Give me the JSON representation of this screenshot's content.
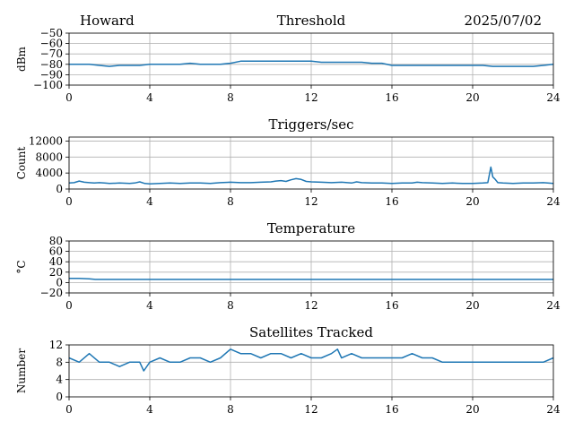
{
  "header": {
    "station": "Howard",
    "date": "2025/07/02"
  },
  "colors": {
    "series": "#1f77b4",
    "grid": "#b0b0b0",
    "axis": "#000000"
  },
  "chart_data": [
    {
      "type": "line",
      "title": "Threshold",
      "xlabel": "",
      "ylabel": "dBm",
      "xlim": [
        0,
        24
      ],
      "ylim": [
        -100,
        -50
      ],
      "xticks": [
        0,
        4,
        8,
        12,
        16,
        20,
        24
      ],
      "yticks": [
        -100,
        -90,
        -80,
        -70,
        -60,
        -50
      ],
      "ytick_labels": [
        "−100",
        "−90",
        "−80",
        "−70",
        "−60",
        "−50"
      ],
      "grid": true,
      "series": [
        {
          "x": [
            0,
            0.5,
            1,
            1.5,
            2,
            2.5,
            3,
            3.5,
            4,
            4.5,
            5,
            5.5,
            6,
            6.5,
            7,
            7.5,
            8,
            8.5,
            9,
            9.5,
            10,
            10.5,
            11,
            11.5,
            12,
            12.5,
            13,
            13.5,
            14,
            14.5,
            15,
            15.5,
            16,
            16.5,
            17,
            17.5,
            18,
            18.5,
            19,
            19.5,
            20,
            20.5,
            21,
            21.5,
            22,
            22.5,
            23,
            23.5,
            24
          ],
          "y": [
            -80,
            -80,
            -80,
            -81,
            -82,
            -81,
            -81,
            -81,
            -80,
            -80,
            -80,
            -80,
            -79,
            -80,
            -80,
            -80,
            -79,
            -77,
            -77,
            -77,
            -77,
            -77,
            -77,
            -77,
            -77,
            -78,
            -78,
            -78,
            -78,
            -78,
            -79,
            -79,
            -81,
            -81,
            -81,
            -81,
            -81,
            -81,
            -81,
            -81,
            -81,
            -81,
            -82,
            -82,
            -82,
            -82,
            -82,
            -81,
            -80
          ]
        }
      ]
    },
    {
      "type": "line",
      "title": "Triggers/sec",
      "xlabel": "",
      "ylabel": "Count",
      "xlim": [
        0,
        24
      ],
      "ylim": [
        0,
        13000
      ],
      "xticks": [
        0,
        4,
        8,
        12,
        16,
        20,
        24
      ],
      "yticks": [
        0,
        4000,
        8000,
        12000
      ],
      "grid": true,
      "series": [
        {
          "x": [
            0,
            0.25,
            0.5,
            0.75,
            1,
            1.25,
            1.5,
            1.75,
            2,
            2.5,
            3,
            3.25,
            3.5,
            3.75,
            4,
            4.5,
            5,
            5.5,
            6,
            6.5,
            7,
            7.5,
            8,
            8.5,
            9,
            9.5,
            10,
            10.25,
            10.5,
            10.75,
            11,
            11.25,
            11.5,
            11.75,
            12,
            12.5,
            13,
            13.5,
            14,
            14.25,
            14.5,
            15,
            15.5,
            16,
            16.5,
            17,
            17.25,
            17.5,
            18,
            18.5,
            19,
            19.5,
            20,
            20.5,
            20.75,
            20.9,
            21,
            21.1,
            21.25,
            21.5,
            22,
            22.5,
            23,
            23.5,
            24
          ],
          "y": [
            1500,
            1600,
            2000,
            1700,
            1600,
            1500,
            1600,
            1500,
            1400,
            1500,
            1400,
            1500,
            1800,
            1400,
            1300,
            1400,
            1500,
            1400,
            1500,
            1500,
            1400,
            1600,
            1700,
            1600,
            1600,
            1700,
            1800,
            2000,
            2100,
            1900,
            2300,
            2600,
            2400,
            1900,
            1800,
            1700,
            1600,
            1700,
            1500,
            1800,
            1600,
            1500,
            1500,
            1400,
            1500,
            1500,
            1700,
            1600,
            1500,
            1400,
            1500,
            1400,
            1400,
            1500,
            1600,
            5500,
            3000,
            2500,
            1600,
            1500,
            1400,
            1500,
            1500,
            1600,
            1400
          ]
        }
      ]
    },
    {
      "type": "line",
      "title": "Temperature",
      "xlabel": "",
      "ylabel": "°C",
      "xlim": [
        0,
        24
      ],
      "ylim": [
        -20,
        80
      ],
      "xticks": [
        0,
        4,
        8,
        12,
        16,
        20,
        24
      ],
      "yticks": [
        -20,
        0,
        20,
        40,
        60,
        80
      ],
      "ytick_labels": [
        "−20",
        "0",
        "20",
        "40",
        "60",
        "80"
      ],
      "grid": true,
      "series": [
        {
          "x": [
            0,
            0.5,
            1,
            1.3,
            2,
            4,
            8,
            12,
            16,
            20,
            24
          ],
          "y": [
            8,
            8,
            7,
            6,
            6,
            6,
            6,
            6,
            6,
            6,
            6
          ]
        }
      ]
    },
    {
      "type": "line",
      "title": "Satellites Tracked",
      "xlabel": "",
      "ylabel": "Number",
      "xlim": [
        0,
        24
      ],
      "ylim": [
        0,
        12
      ],
      "xticks": [
        0,
        4,
        8,
        12,
        16,
        20,
        24
      ],
      "yticks": [
        0,
        4,
        8,
        12
      ],
      "grid": true,
      "series": [
        {
          "x": [
            0,
            0.5,
            1,
            1.5,
            2,
            2.5,
            3,
            3.5,
            3.7,
            4,
            4.5,
            5,
            5.5,
            6,
            6.5,
            7,
            7.5,
            8,
            8.5,
            9,
            9.5,
            10,
            10.5,
            11,
            11.5,
            12,
            12.5,
            13,
            13.3,
            13.5,
            14,
            14.5,
            15,
            15.5,
            16,
            16.5,
            17,
            17.5,
            18,
            18.5,
            19,
            19.5,
            20,
            20.5,
            21,
            21.5,
            22,
            22.5,
            23,
            23.5,
            24
          ],
          "y": [
            9,
            8,
            10,
            8,
            8,
            7,
            8,
            8,
            6,
            8,
            9,
            8,
            8,
            9,
            9,
            8,
            9,
            11,
            10,
            10,
            9,
            10,
            10,
            9,
            10,
            9,
            9,
            10,
            11,
            9,
            10,
            9,
            9,
            9,
            9,
            9,
            10,
            9,
            9,
            8,
            8,
            8,
            8,
            8,
            8,
            8,
            8,
            8,
            8,
            8,
            9
          ]
        }
      ]
    }
  ]
}
